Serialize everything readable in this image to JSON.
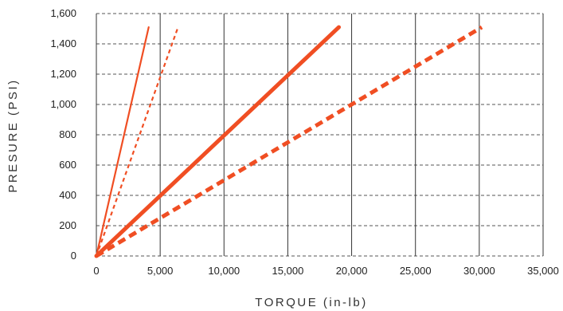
{
  "chart_data": {
    "type": "line",
    "xlabel": "TORQUE (in-lb)",
    "ylabel": "PRESURE (PSI)",
    "xlim": [
      0,
      35000
    ],
    "ylim": [
      0,
      1600
    ],
    "x_ticks": [
      "0",
      "5,000",
      "10,000",
      "15,000",
      "20,000",
      "25,000",
      "30,000",
      "35,000"
    ],
    "x_tick_values": [
      0,
      5000,
      10000,
      15000,
      20000,
      25000,
      30000,
      35000
    ],
    "y_ticks": [
      "0",
      "200",
      "400",
      "600",
      "800",
      "1,000",
      "1,200",
      "1,400",
      "1,600"
    ],
    "y_tick_values": [
      0,
      200,
      400,
      600,
      800,
      1000,
      1200,
      1400,
      1600
    ],
    "grid": {
      "horizontal": "dashed",
      "vertical": "solid"
    },
    "legend": "none",
    "color": "#f04e23",
    "series": [
      {
        "style": "solid-thin",
        "points": [
          [
            0,
            0
          ],
          [
            4100,
            1510
          ]
        ]
      },
      {
        "style": "dashed-thin",
        "points": [
          [
            0,
            0
          ],
          [
            6400,
            1510
          ]
        ]
      },
      {
        "style": "solid-thick",
        "points": [
          [
            0,
            0
          ],
          [
            19000,
            1510
          ]
        ]
      },
      {
        "style": "dashed-thick",
        "points": [
          [
            0,
            0
          ],
          [
            30200,
            1510
          ]
        ]
      }
    ]
  }
}
